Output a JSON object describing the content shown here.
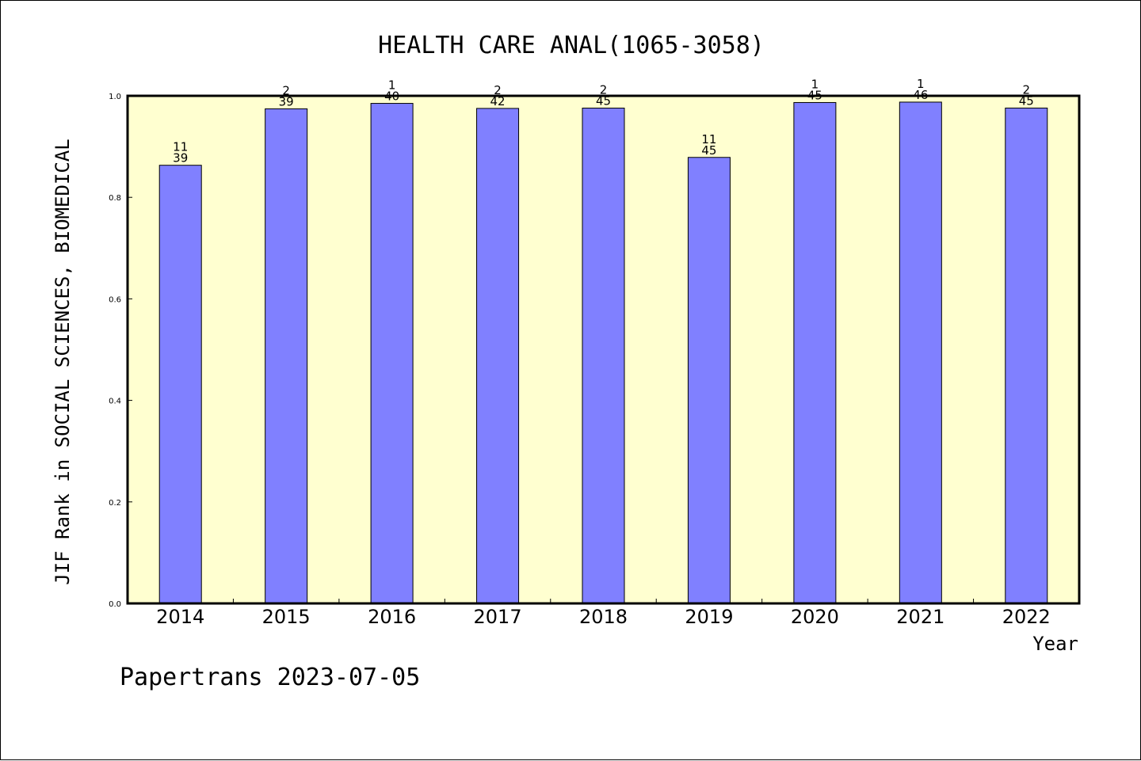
{
  "chart_data": {
    "type": "bar",
    "title": "HEALTH CARE ANAL(1065-3058)",
    "xlabel": "Year",
    "ylabel": "JIF Rank in SOCIAL SCIENCES, BIOMEDICAL",
    "ylim": [
      0.0,
      1.0
    ],
    "yticks": [
      "0.0",
      "0.2",
      "0.4",
      "0.6",
      "0.8",
      "1.0"
    ],
    "categories": [
      "2014",
      "2015",
      "2016",
      "2017",
      "2018",
      "2019",
      "2020",
      "2021",
      "2022"
    ],
    "values": [
      0.8632,
      0.9744,
      0.9851,
      0.9752,
      0.9758,
      0.8787,
      0.9868,
      0.9876,
      0.9759
    ],
    "rank_labels": [
      "11",
      "2",
      "1",
      "2",
      "2",
      "11",
      "1",
      "1",
      "2"
    ],
    "total_labels": [
      "39",
      "39",
      "40",
      "42",
      "45",
      "45",
      "45",
      "46",
      "45"
    ],
    "grid": false,
    "colors": {
      "plot_background": "#ffffd0",
      "bar_fill": "#8080ff",
      "bar_stroke": "#000000"
    }
  },
  "footer": {
    "text": "Papertrans 2023-07-05"
  }
}
